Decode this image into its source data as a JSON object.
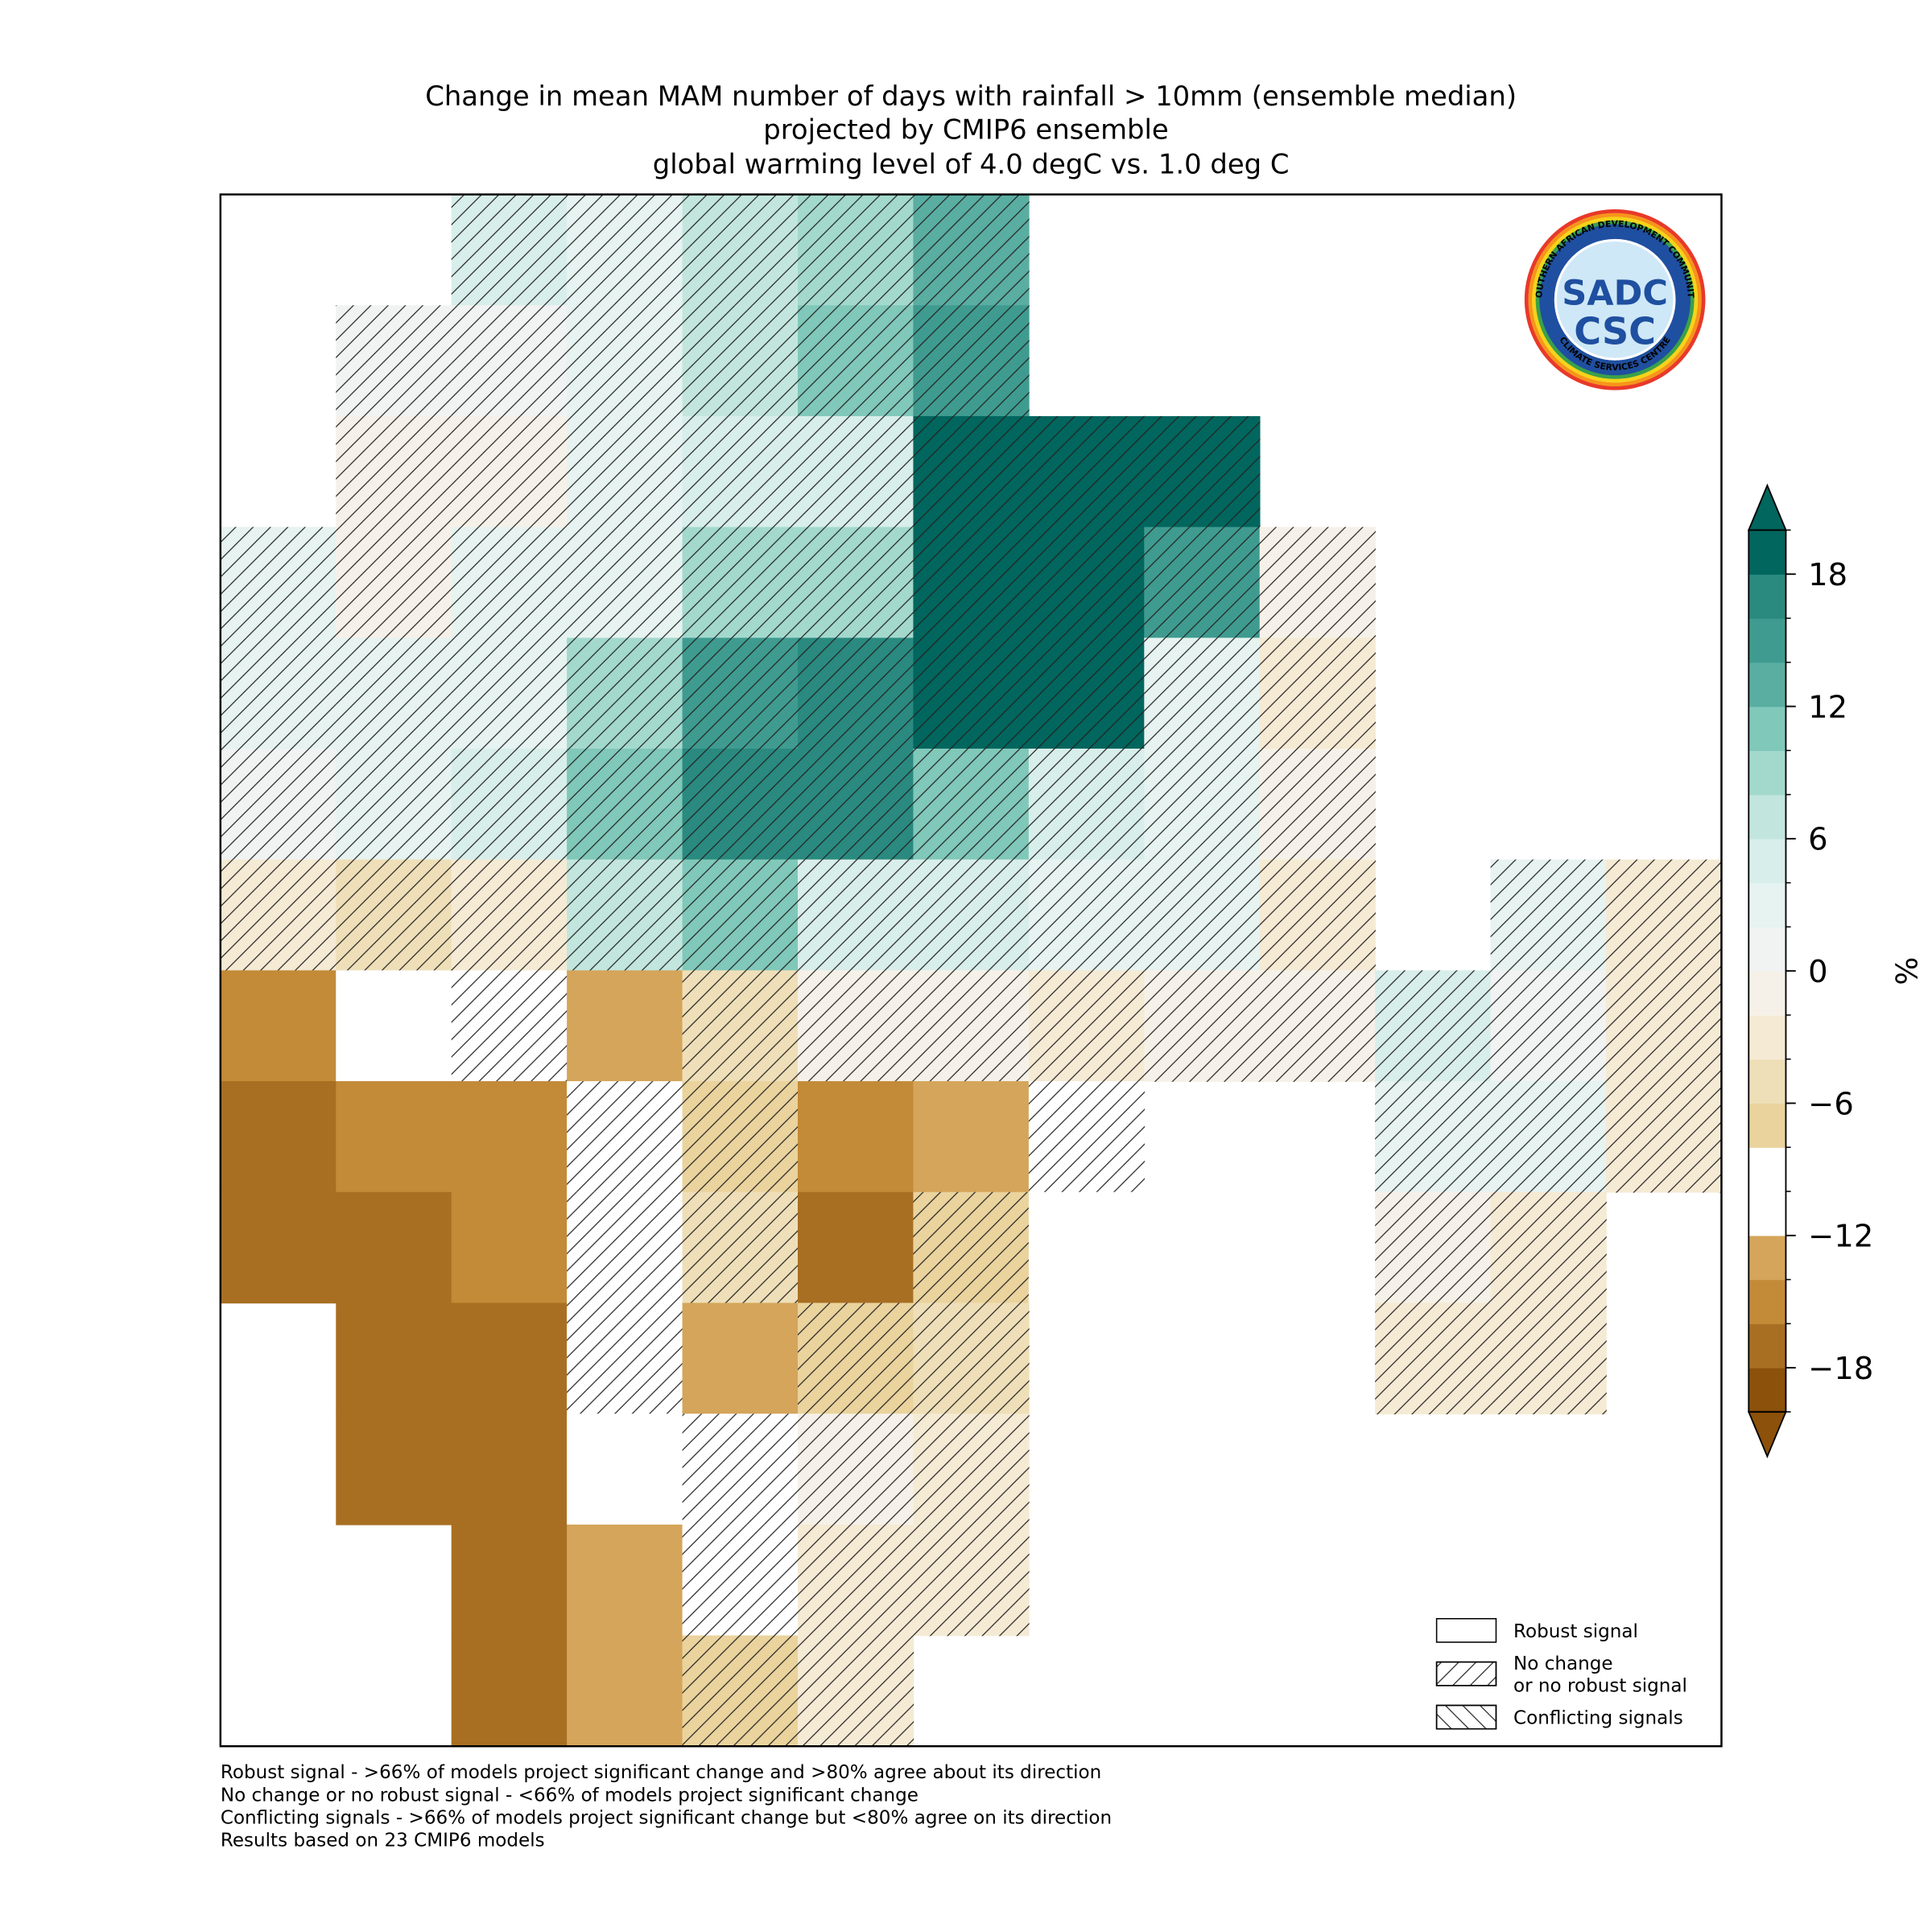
{
  "chart_data": {
    "type": "heatmap",
    "title": [
      "Change in mean MAM number of days with rainfall > 10mm (ensemble median)",
      "projected by CMIP6 ensemble",
      "global warming level of 4.0 degC vs. 1.0 deg C"
    ],
    "grid": [
      [
        null,
        null,
        5,
        3,
        6,
        8,
        12,
        null,
        null,
        null,
        null,
        null,
        null
      ],
      [
        null,
        1,
        0,
        3,
        6,
        10,
        14,
        null,
        null,
        null,
        null,
        null,
        null
      ],
      [
        null,
        -1,
        -2,
        2,
        5,
        4,
        20,
        20,
        18,
        null,
        null,
        null,
        null
      ],
      [
        2,
        -1,
        2,
        3,
        8,
        8,
        20,
        20,
        14,
        -2,
        null,
        null,
        null
      ],
      [
        2,
        2,
        3,
        8,
        14,
        16,
        20,
        18,
        2,
        -3,
        null,
        null,
        null
      ],
      [
        1,
        3,
        4,
        10,
        16,
        16,
        10,
        4,
        3,
        -2,
        null,
        null,
        null
      ],
      [
        -4,
        -6,
        -3,
        6,
        10,
        5,
        4,
        3,
        2,
        -3,
        null,
        2,
        -3
      ],
      [
        -15,
        -12,
        -9,
        -14,
        -5,
        -2,
        -2,
        -3,
        -1,
        -2,
        5,
        1,
        -3
      ],
      [
        -17,
        -16,
        -15,
        -10,
        -8,
        -15,
        -14,
        -11,
        null,
        null,
        3,
        2,
        -4
      ],
      [
        -18,
        -17,
        -16,
        -10,
        -6,
        -17,
        -8,
        -12,
        null,
        null,
        -1,
        -3,
        null
      ],
      [
        null,
        -18,
        -17,
        -9,
        -14,
        -8,
        -5,
        null,
        null,
        null,
        -4,
        -3,
        null
      ],
      [
        null,
        -18,
        -17,
        -12,
        -10,
        -2,
        -3,
        null,
        null,
        null,
        null,
        null,
        null
      ],
      [
        null,
        null,
        -18,
        -13,
        -9,
        -3,
        -4,
        null,
        null,
        null,
        null,
        null,
        null
      ],
      [
        null,
        null,
        -18,
        -14,
        -7,
        -4,
        null,
        null,
        null,
        null,
        null,
        null,
        null
      ]
    ],
    "colorbar": {
      "label": "%",
      "lim": [
        -20,
        20
      ],
      "levels": [
        -20,
        -18,
        -16,
        -14,
        -12,
        -10,
        -8,
        -6,
        -4,
        -2,
        0,
        2,
        4,
        6,
        8,
        10,
        12,
        14,
        16,
        18,
        20
      ],
      "colors": [
        "#8c510a",
        "#a86f22",
        "#c38a37",
        "#d4a55a",
        "#ffffff",
        "#ffffff",
        "#ead39d",
        "#efdfb8",
        "#f5ead4",
        "#f6f1e8",
        "#f0f3f2",
        "#e6f3f0",
        "#d8eeea",
        "#c2e6dd",
        "#a3d9cd",
        "#80c8b9",
        "#5aada1",
        "#3f9b90",
        "#2a8a80",
        "#01665e"
      ],
      "ticks": [
        {
          "value": -18,
          "label": "−18"
        },
        {
          "value": -12,
          "label": "−12"
        },
        {
          "value": -6,
          "label": "−6"
        },
        0,
        6,
        12,
        18
      ]
    },
    "legend": [
      {
        "label": [
          "Robust signal"
        ],
        "hatch": "none"
      },
      {
        "label": [
          "No change",
          "or no robust signal"
        ],
        "hatch": "forward"
      },
      {
        "label": [
          "Conflicting signals"
        ],
        "hatch": "back"
      }
    ],
    "footnotes": [
      "Robust signal - >66% of models project significant change and >80% agree about its direction",
      "No change or no robust signal - <66% of models project significant change",
      "Conflicting signals - >66% of models project significant change but <80% agree on its direction",
      "Results based on 23 CMIP6 models"
    ],
    "logo": {
      "top": "SADC",
      "bottom": "CSC",
      "ring_top": "SOUTHERN AFRICAN DEVELOPMENT COMMUNITY",
      "ring_bottom": "CLIMATE SERVICES CENTRE"
    }
  }
}
